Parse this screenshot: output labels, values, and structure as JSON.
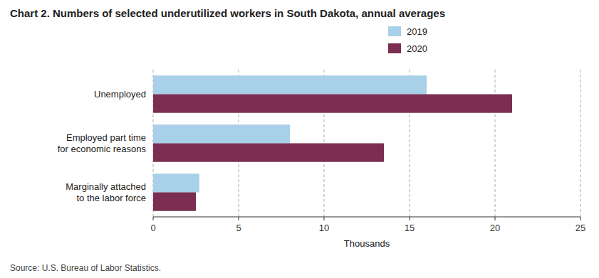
{
  "chart_data": {
    "type": "bar",
    "orientation": "horizontal",
    "title": "Chart 2. Numbers of selected underutilized workers in South Dakota, annual averages",
    "categories": [
      "Unemployed",
      "Employed part time\nfor economic reasons",
      "Marginally attached\nto the labor force"
    ],
    "series": [
      {
        "name": "2019",
        "color": "#a8d0e8",
        "values": [
          16.0,
          8.0,
          2.7
        ]
      },
      {
        "name": "2020",
        "color": "#7b2d52",
        "values": [
          21.0,
          13.5,
          2.5
        ]
      }
    ],
    "xlim": [
      0,
      25
    ],
    "xticks": [
      0,
      5,
      10,
      15,
      20,
      25
    ],
    "xlabel": "Thousands",
    "source": "Source: U.S. Bureau of Labor Statistics.",
    "grid": true,
    "legend": "top"
  }
}
